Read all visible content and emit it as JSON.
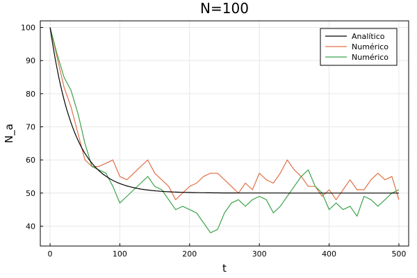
{
  "chart_data": {
    "type": "line",
    "title": "N=100",
    "xlabel": "t",
    "ylabel": "N_a",
    "xlim": [
      -14,
      514
    ],
    "ylim": [
      34,
      102
    ],
    "xticks": [
      0,
      100,
      200,
      300,
      400,
      500
    ],
    "yticks": [
      40,
      50,
      60,
      70,
      80,
      90,
      100
    ],
    "grid": true,
    "legend_position": "top-right",
    "series": [
      {
        "name": "Analítico",
        "color": "#000000",
        "kind": "exponential",
        "y0": 100,
        "y_inf": 50,
        "tau": 35,
        "t_range": [
          0,
          500
        ]
      },
      {
        "name": "Numérico",
        "color": "#e26f46",
        "x": [
          0,
          10,
          20,
          30,
          40,
          50,
          60,
          70,
          80,
          90,
          100,
          110,
          120,
          130,
          140,
          150,
          160,
          170,
          180,
          190,
          200,
          210,
          220,
          230,
          240,
          250,
          260,
          270,
          280,
          290,
          300,
          310,
          320,
          330,
          340,
          350,
          360,
          370,
          380,
          390,
          400,
          410,
          420,
          430,
          440,
          450,
          460,
          470,
          480,
          490,
          500
        ],
        "y": [
          100,
          91,
          82,
          76,
          68,
          60,
          58,
          58,
          59,
          60,
          55,
          54,
          56,
          58,
          60,
          56,
          54,
          52,
          48,
          50,
          52,
          53,
          55,
          56,
          56,
          54,
          52,
          50,
          53,
          51,
          56,
          54,
          53,
          56,
          60,
          57,
          55,
          52,
          52,
          49,
          51,
          48,
          51,
          54,
          51,
          51,
          54,
          56,
          54,
          55,
          48
        ]
      },
      {
        "name": "Numérico",
        "color": "#3ba24a",
        "x": [
          0,
          10,
          20,
          30,
          40,
          50,
          60,
          70,
          80,
          90,
          100,
          110,
          120,
          130,
          140,
          150,
          160,
          170,
          180,
          190,
          200,
          210,
          220,
          230,
          240,
          250,
          260,
          270,
          280,
          290,
          300,
          310,
          320,
          330,
          340,
          350,
          360,
          370,
          380,
          390,
          400,
          410,
          420,
          430,
          440,
          450,
          460,
          470,
          480,
          490,
          500
        ],
        "y": [
          100,
          92,
          85,
          81,
          74,
          65,
          58,
          57,
          56,
          52,
          47,
          49,
          51,
          53,
          55,
          52,
          51,
          48,
          45,
          46,
          45,
          44,
          41,
          38,
          39,
          44,
          47,
          48,
          46,
          48,
          49,
          48,
          44,
          46,
          49,
          52,
          55,
          57,
          52,
          50,
          45,
          47,
          45,
          46,
          43,
          49,
          48,
          46,
          48,
          50,
          51
        ]
      }
    ]
  }
}
